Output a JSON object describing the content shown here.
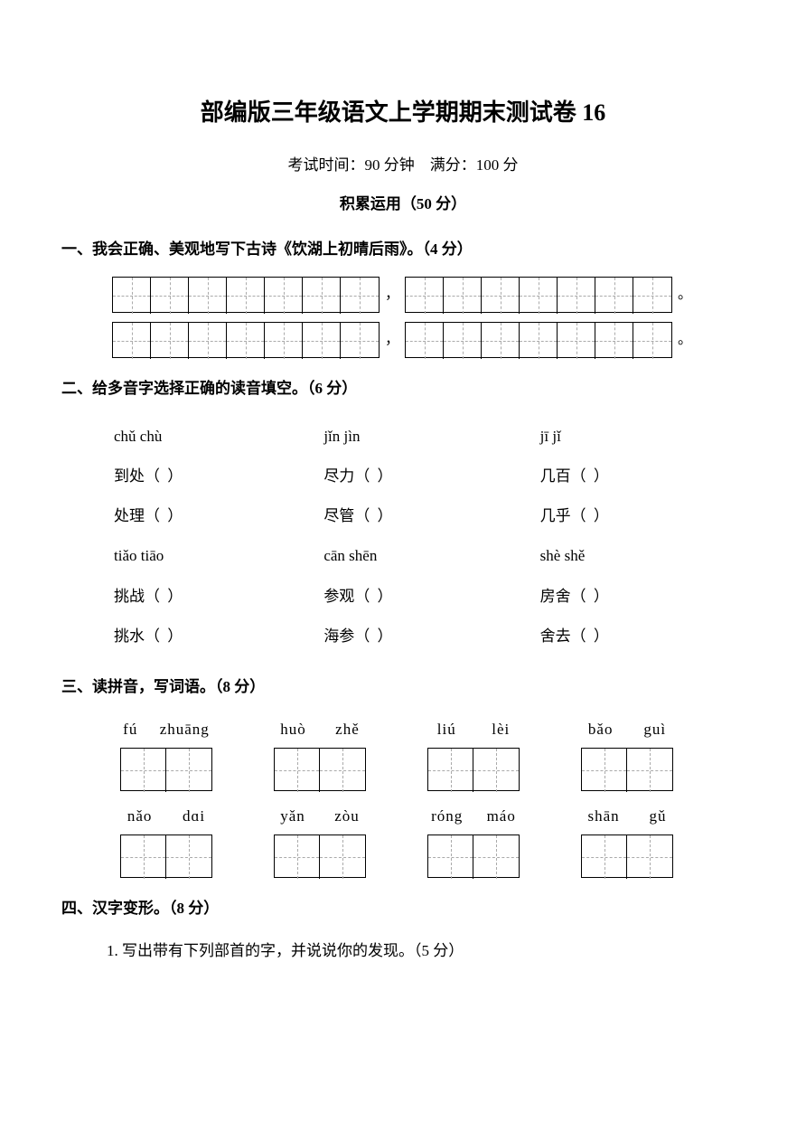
{
  "title": "部编版三年级语文上学期期末测试卷 16",
  "subtitle_exam_time": "考试时间：90 分钟",
  "subtitle_full_score": "满分：100 分",
  "section_header": "积累运用（50 分）",
  "q1": {
    "heading": "一、我会正确、美观地写下古诗《饮湖上初晴后雨》。（4 分）",
    "cells_per_block": 7,
    "punct_comma": "，",
    "punct_period": "。"
  },
  "q2": {
    "heading": "二、给多音字选择正确的读音填空。（6 分）",
    "rows_header": [
      [
        "chǔ  chù",
        "jǐn  jìn",
        "jī   jǐ"
      ]
    ],
    "rows_items1": [
      [
        "到处",
        "尽力",
        "几百"
      ],
      [
        "处理",
        "尽管",
        "几乎"
      ]
    ],
    "rows_header2": [
      [
        "tiǎo  tiāo",
        "cān   shēn",
        "shè  shě"
      ]
    ],
    "rows_items2": [
      [
        "挑战",
        "参观",
        "房舍"
      ],
      [
        "挑水",
        "海参",
        "舍去"
      ]
    ]
  },
  "q3": {
    "heading": "三、读拼音，写词语。（8 分）",
    "row1": [
      [
        "fú",
        "zhuāng"
      ],
      [
        "huò",
        "zhě"
      ],
      [
        "liú",
        "lèi"
      ],
      [
        "bǎo",
        "guì"
      ]
    ],
    "row2": [
      [
        "nǎo",
        "dɑi"
      ],
      [
        "yǎn",
        "zòu"
      ],
      [
        "róng",
        "máo"
      ],
      [
        "shān",
        "gǔ"
      ]
    ]
  },
  "q4": {
    "heading": "四、汉字变形。（8 分）",
    "sub1": "1. 写出带有下列部首的字，并说说你的发现。（5 分）"
  },
  "paren_text": "（      ）"
}
